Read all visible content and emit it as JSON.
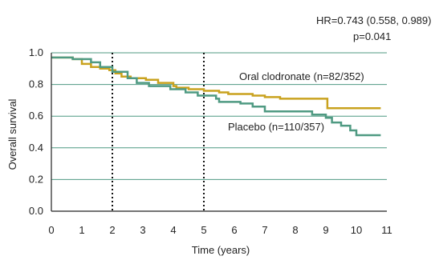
{
  "chart_data": {
    "type": "line",
    "xlabel": "Time (years)",
    "ylabel": "Overall survival",
    "xlim": [
      0,
      11
    ],
    "ylim": [
      0,
      1.0
    ],
    "xticks": [
      "0",
      "1",
      "2",
      "3",
      "4",
      "5",
      "6",
      "7",
      "8",
      "9",
      "10",
      "11"
    ],
    "yticks": [
      "0.0",
      "0.2",
      "0.4",
      "0.6",
      "0.8",
      "1.0"
    ],
    "grid": "horizontal",
    "reference_lines_x": [
      2,
      5
    ],
    "annotation_hr": "HR=0.743 (0.558, 0.989)",
    "annotation_p": "p=0.041",
    "series": [
      {
        "name": "Oral clodronate (n=82/352)",
        "color": "#c9a21e",
        "points": [
          [
            0,
            0.97
          ],
          [
            0.7,
            0.96
          ],
          [
            1.0,
            0.93
          ],
          [
            1.3,
            0.91
          ],
          [
            1.6,
            0.9
          ],
          [
            1.9,
            0.89
          ],
          [
            2.1,
            0.87
          ],
          [
            2.3,
            0.85
          ],
          [
            2.6,
            0.84
          ],
          [
            3.1,
            0.83
          ],
          [
            3.5,
            0.81
          ],
          [
            4.0,
            0.79
          ],
          [
            4.1,
            0.78
          ],
          [
            4.5,
            0.77
          ],
          [
            5.0,
            0.76
          ],
          [
            5.5,
            0.75
          ],
          [
            5.8,
            0.74
          ],
          [
            6.6,
            0.73
          ],
          [
            7.0,
            0.72
          ],
          [
            7.5,
            0.71
          ],
          [
            9.0,
            0.71
          ],
          [
            9.05,
            0.65
          ],
          [
            10.8,
            0.65
          ]
        ]
      },
      {
        "name": "Placebo (n=110/357)",
        "color": "#4f9a82",
        "points": [
          [
            0,
            0.97
          ],
          [
            0.7,
            0.96
          ],
          [
            1.3,
            0.94
          ],
          [
            1.6,
            0.91
          ],
          [
            2.0,
            0.88
          ],
          [
            2.5,
            0.84
          ],
          [
            2.8,
            0.81
          ],
          [
            3.2,
            0.79
          ],
          [
            3.9,
            0.77
          ],
          [
            4.4,
            0.75
          ],
          [
            4.8,
            0.73
          ],
          [
            5.4,
            0.71
          ],
          [
            5.5,
            0.69
          ],
          [
            6.2,
            0.68
          ],
          [
            6.6,
            0.66
          ],
          [
            7.0,
            0.63
          ],
          [
            8.5,
            0.63
          ],
          [
            8.55,
            0.61
          ],
          [
            8.9,
            0.61
          ],
          [
            9.0,
            0.59
          ],
          [
            9.2,
            0.56
          ],
          [
            9.5,
            0.54
          ],
          [
            9.8,
            0.51
          ],
          [
            10.0,
            0.48
          ],
          [
            10.8,
            0.48
          ]
        ]
      }
    ]
  }
}
